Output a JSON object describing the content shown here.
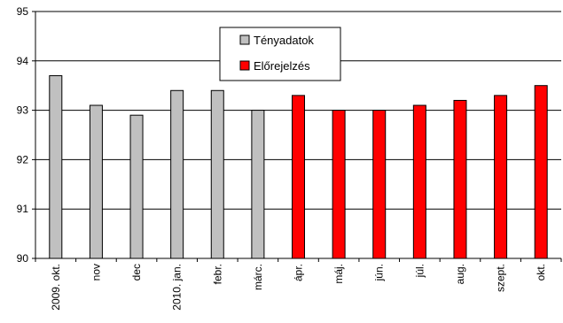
{
  "chart_data": {
    "type": "bar",
    "title": "",
    "xlabel": "",
    "ylabel": "",
    "ylim": [
      90,
      95
    ],
    "yticks": [
      90,
      91,
      92,
      93,
      94,
      95
    ],
    "grid": "horizontal",
    "legend_position": "top-center",
    "categories": [
      "2009. okt.",
      "nov",
      "dec",
      "2010. jan.",
      "febr.",
      "márc.",
      "ápr.",
      "máj.",
      "jún.",
      "júl.",
      "aug.",
      "szept.",
      "okt."
    ],
    "series": [
      {
        "name": "Tényadatok",
        "color": "#c0c0c0",
        "values": [
          93.7,
          93.1,
          92.9,
          93.4,
          93.4,
          93.0,
          null,
          null,
          null,
          null,
          null,
          null,
          null
        ]
      },
      {
        "name": "Előrejelzés",
        "color": "#ff0000",
        "values": [
          null,
          null,
          null,
          null,
          null,
          null,
          93.3,
          93.0,
          93.0,
          93.1,
          93.2,
          93.3,
          93.5
        ]
      }
    ]
  }
}
